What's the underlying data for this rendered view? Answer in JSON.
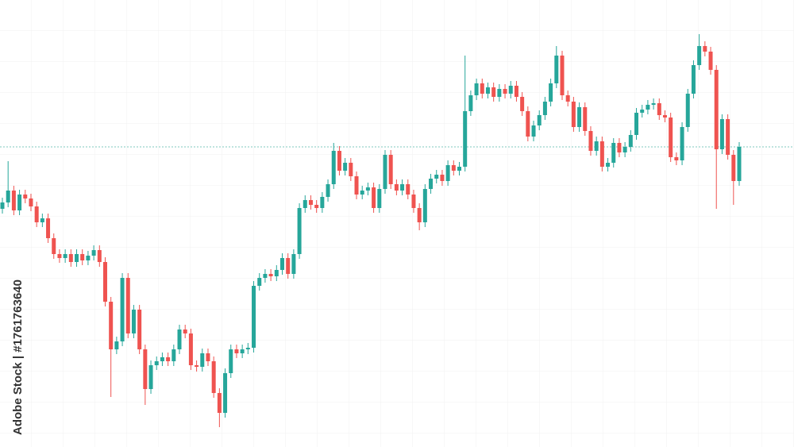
{
  "chart_data": {
    "type": "candlestick",
    "watermark": "Adobe Stock | #1761763640",
    "ylim": [
      0,
      563
    ],
    "up_color": "#26a69a",
    "down_color": "#ef5350",
    "grid": true,
    "open": [
      300,
      308,
      323,
      298,
      318,
      313,
      303,
      283,
      288,
      263,
      243,
      238,
      243,
      233,
      243,
      235,
      241,
      248,
      233,
      183,
      123,
      133,
      213,
      143,
      173,
      123,
      73,
      103,
      108,
      113,
      108,
      123,
      148,
      143,
      103,
      101,
      118,
      108,
      68,
      43,
      93,
      123,
      118,
      123,
      125,
      203,
      213,
      218,
      215,
      223,
      238,
      218,
      243,
      301,
      311,
      305,
      301,
      315,
      331,
      373,
      348,
      358,
      341,
      318,
      323,
      327,
      301,
      325,
      368,
      331,
      323,
      331,
      318,
      301,
      283,
      325,
      338,
      343,
      335,
      355,
      348,
      353,
      423,
      443,
      458,
      445,
      453,
      441,
      451,
      445,
      455,
      441,
      423,
      391,
      405,
      418,
      435,
      458,
      493,
      443,
      435,
      403,
      428,
      398,
      373,
      385,
      353,
      358,
      383,
      371,
      378,
      393,
      421,
      425,
      431,
      433,
      418,
      415,
      365,
      361,
      403,
      445,
      481,
      505,
      498,
      475,
      375,
      413,
      368,
      335
    ],
    "high": [
      314,
      360,
      329,
      324,
      324,
      319,
      309,
      294,
      294,
      269,
      249,
      249,
      249,
      249,
      249,
      247,
      254,
      254,
      239,
      189,
      139,
      219,
      219,
      179,
      179,
      129,
      109,
      114,
      119,
      119,
      129,
      154,
      154,
      149,
      109,
      124,
      124,
      114,
      74,
      99,
      129,
      129,
      129,
      131,
      209,
      219,
      224,
      224,
      229,
      244,
      244,
      249,
      307,
      317,
      317,
      311,
      321,
      337,
      383,
      379,
      364,
      364,
      347,
      329,
      333,
      333,
      331,
      374,
      374,
      337,
      337,
      337,
      324,
      307,
      331,
      344,
      349,
      349,
      361,
      361,
      359,
      493,
      449,
      464,
      464,
      459,
      459,
      457,
      457,
      461,
      461,
      447,
      429,
      411,
      424,
      441,
      464,
      505,
      499,
      449,
      441,
      434,
      434,
      404,
      391,
      391,
      364,
      389,
      389,
      384,
      399,
      427,
      431,
      437,
      439,
      439,
      424,
      421,
      371,
      409,
      451,
      487,
      520,
      511,
      504,
      481,
      419,
      419,
      374,
      384
    ],
    "low": [
      294,
      302,
      292,
      292,
      307,
      297,
      277,
      277,
      257,
      237,
      232,
      232,
      227,
      227,
      229,
      229,
      235,
      227,
      177,
      63,
      117,
      127,
      137,
      137,
      117,
      53,
      67,
      97,
      102,
      102,
      102,
      117,
      137,
      97,
      95,
      95,
      102,
      62,
      25,
      37,
      87,
      112,
      112,
      117,
      119,
      197,
      207,
      209,
      209,
      217,
      212,
      212,
      237,
      295,
      299,
      295,
      295,
      309,
      325,
      342,
      342,
      335,
      312,
      312,
      317,
      295,
      295,
      319,
      325,
      317,
      317,
      312,
      295,
      273,
      277,
      319,
      332,
      329,
      329,
      342,
      342,
      347,
      417,
      437,
      439,
      439,
      435,
      435,
      439,
      439,
      435,
      417,
      385,
      385,
      399,
      412,
      429,
      452,
      437,
      429,
      397,
      397,
      392,
      367,
      367,
      347,
      347,
      352,
      365,
      365,
      372,
      387,
      415,
      419,
      425,
      412,
      409,
      359,
      355,
      355,
      397,
      439,
      475,
      492,
      469,
      300,
      369,
      362,
      305,
      329
    ],
    "close": [
      308,
      323,
      298,
      318,
      313,
      303,
      283,
      288,
      263,
      243,
      238,
      243,
      233,
      243,
      235,
      241,
      248,
      233,
      183,
      123,
      133,
      213,
      143,
      173,
      123,
      73,
      103,
      108,
      113,
      108,
      123,
      148,
      143,
      103,
      101,
      118,
      108,
      68,
      43,
      93,
      123,
      118,
      123,
      125,
      203,
      213,
      218,
      215,
      223,
      238,
      218,
      243,
      301,
      311,
      305,
      301,
      315,
      331,
      373,
      348,
      358,
      341,
      318,
      323,
      327,
      301,
      325,
      368,
      331,
      323,
      331,
      318,
      301,
      283,
      325,
      338,
      343,
      335,
      355,
      348,
      353,
      423,
      443,
      458,
      445,
      453,
      441,
      451,
      445,
      455,
      441,
      423,
      391,
      405,
      418,
      435,
      458,
      493,
      443,
      435,
      403,
      428,
      398,
      373,
      385,
      353,
      358,
      383,
      371,
      378,
      393,
      421,
      425,
      431,
      433,
      418,
      415,
      365,
      361,
      403,
      445,
      481,
      505,
      498,
      475,
      375,
      413,
      368,
      335,
      378
    ]
  }
}
